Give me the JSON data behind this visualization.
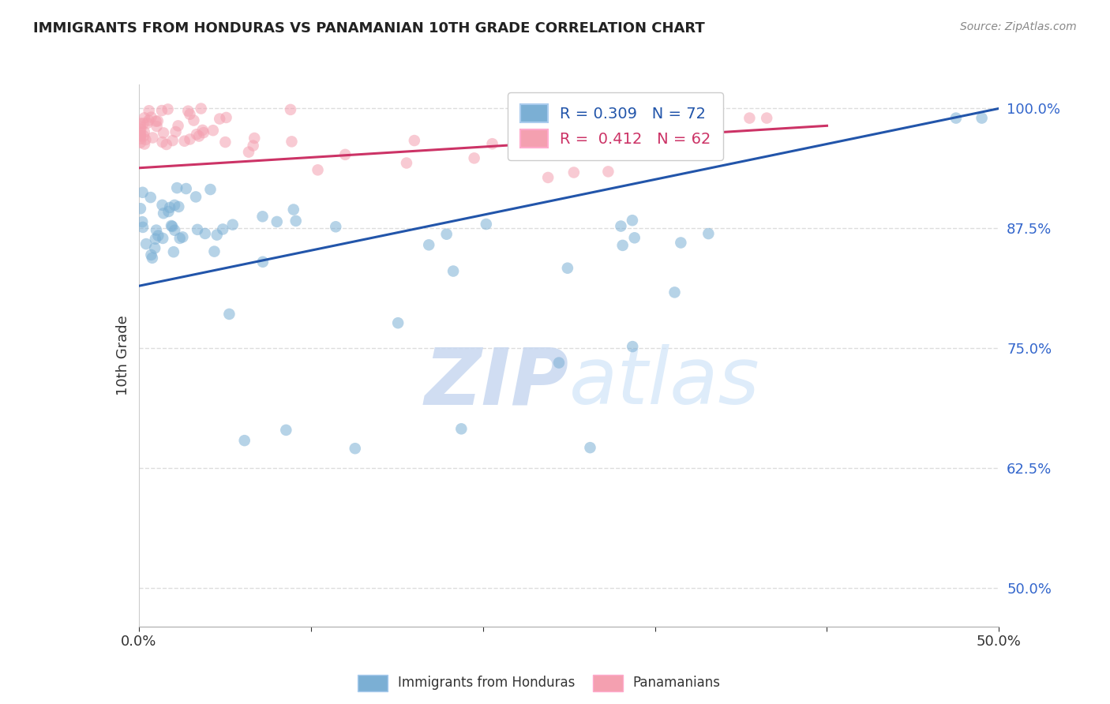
{
  "title": "IMMIGRANTS FROM HONDURAS VS PANAMANIAN 10TH GRADE CORRELATION CHART",
  "source": "Source: ZipAtlas.com",
  "ylabel": "10th Grade",
  "ytick_values": [
    0.5,
    0.625,
    0.75,
    0.875,
    1.0
  ],
  "xmin": 0.0,
  "xmax": 0.5,
  "ymin": 0.46,
  "ymax": 1.025,
  "legend_blue_label": "Immigrants from Honduras",
  "legend_pink_label": "Panamanians",
  "R_blue": "0.309",
  "N_blue": "72",
  "R_pink": "0.412",
  "N_pink": "62",
  "blue_color": "#7BAFD4",
  "pink_color": "#F4A0B0",
  "line_blue_color": "#2255AA",
  "line_pink_color": "#CC3366",
  "blue_line_x": [
    0.0,
    0.5
  ],
  "blue_line_y": [
    0.815,
    1.0
  ],
  "pink_line_x": [
    0.0,
    0.4
  ],
  "pink_line_y": [
    0.938,
    0.982
  ],
  "watermark_zip": "ZIP",
  "watermark_atlas": "atlas",
  "background_color": "#FFFFFF",
  "grid_color": "#DDDDDD"
}
